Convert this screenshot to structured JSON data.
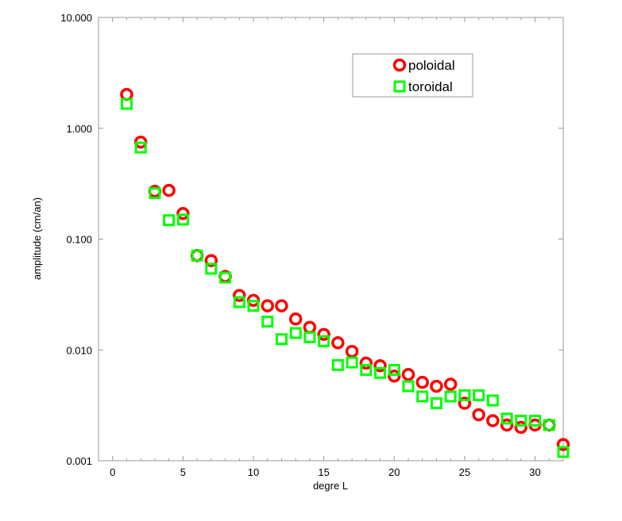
{
  "chart_data": {
    "type": "scatter",
    "title": "",
    "xlabel": "degre L",
    "ylabel": "amplitude (cm/an)",
    "xlim": [
      -1,
      32
    ],
    "ylim": [
      0.001,
      10
    ],
    "yscale": "log",
    "x_ticks": [
      0,
      5,
      10,
      15,
      20,
      25,
      30
    ],
    "y_ticks": [
      10,
      1,
      0.1,
      0.01,
      0.001
    ],
    "y_tick_labels": [
      "10.000",
      "1.000",
      "0.100",
      "0.010",
      "0.001"
    ],
    "legend_position": "top-right",
    "x": [
      1,
      2,
      3,
      4,
      5,
      6,
      7,
      8,
      9,
      10,
      11,
      12,
      13,
      14,
      15,
      16,
      17,
      18,
      19,
      20,
      21,
      22,
      23,
      24,
      25,
      26,
      27,
      28,
      29,
      30,
      31,
      32
    ],
    "series": [
      {
        "name": "poloidal",
        "marker": "circle",
        "color": "#ff0000",
        "values": [
          2.02,
          0.75,
          0.27,
          0.275,
          0.17,
          0.071,
          0.064,
          0.046,
          0.031,
          0.028,
          0.025,
          0.025,
          0.019,
          0.016,
          0.0138,
          0.0116,
          0.0097,
          0.0076,
          0.0072,
          0.0058,
          0.006,
          0.0051,
          0.0047,
          0.0049,
          0.0033,
          0.0026,
          0.0023,
          0.0021,
          0.002,
          0.0021,
          0.0021,
          0.0014
        ]
      },
      {
        "name": "toroidal",
        "marker": "square",
        "color": "#00ff00",
        "values": [
          1.66,
          0.67,
          0.26,
          0.148,
          0.15,
          0.071,
          0.054,
          0.045,
          0.027,
          0.025,
          0.018,
          0.0125,
          0.0142,
          0.013,
          0.012,
          0.0073,
          0.0077,
          0.0066,
          0.0062,
          0.0066,
          0.0047,
          0.0038,
          0.0033,
          0.0038,
          0.0039,
          0.0039,
          0.0035,
          0.0024,
          0.0023,
          0.0023,
          0.0021,
          0.0012
        ]
      }
    ]
  }
}
